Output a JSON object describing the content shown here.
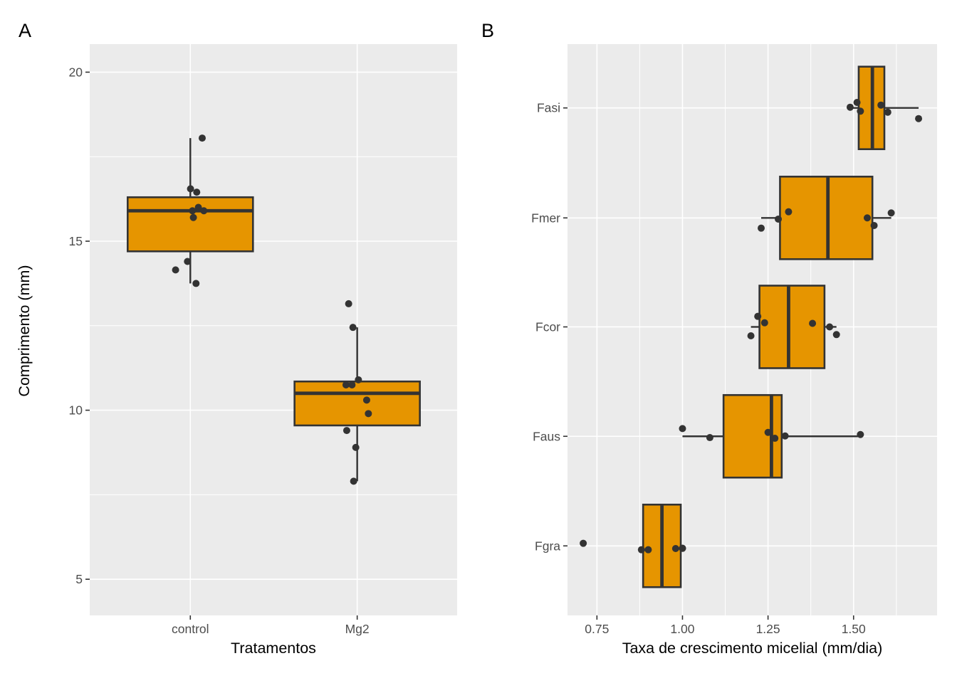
{
  "colors": {
    "box_fill": "#E69500",
    "box_stroke": "#333333",
    "point": "#333333",
    "panel_bg": "#EBEBEB",
    "grid": "#FFFFFF",
    "tick_text": "#4D4D4D",
    "axis_title": "#000000"
  },
  "chart_data": [
    {
      "type": "boxplot",
      "tag": "A",
      "orientation": "vertical",
      "xlabel": "Tratamentos",
      "ylabel": "Comprimento (mm)",
      "ylim": [
        3.93,
        20.83
      ],
      "yticks": {
        "values": [
          5,
          10,
          15,
          20
        ],
        "labels": [
          "5",
          "10",
          "15",
          "20"
        ]
      },
      "yticks_minor": [
        7.5,
        12.5,
        17.5
      ],
      "categories": [
        "control",
        "Mg2"
      ],
      "grid": true,
      "legend": false,
      "boxes": [
        {
          "category": "control",
          "q1": 14.7,
          "median": 15.9,
          "q3": 16.3,
          "whisker_low": 13.75,
          "whisker_high": 18.05,
          "points": [
            [
              18.05,
              16.7
            ],
            [
              16.55,
              0.3
            ],
            [
              16.45,
              9
            ],
            [
              16.0,
              11.3
            ],
            [
              15.9,
              3
            ],
            [
              15.9,
              19
            ],
            [
              15.7,
              4.3
            ],
            [
              14.4,
              -4
            ],
            [
              14.15,
              -20.7
            ],
            [
              13.75,
              8
            ]
          ]
        },
        {
          "category": "Mg2",
          "q1": 9.55,
          "median": 10.5,
          "q3": 10.85,
          "whisker_low": 7.9,
          "whisker_high": 12.45,
          "points": [
            [
              13.15,
              -12
            ],
            [
              12.45,
              -6
            ],
            [
              10.9,
              1.7
            ],
            [
              10.75,
              -15.7
            ],
            [
              10.75,
              -7.3
            ],
            [
              10.3,
              13.3
            ],
            [
              9.9,
              15.7
            ],
            [
              9.4,
              -14.7
            ],
            [
              8.9,
              -2
            ],
            [
              7.9,
              -5
            ]
          ]
        }
      ]
    },
    {
      "type": "boxplot",
      "tag": "B",
      "orientation": "horizontal",
      "xlabel": "Taxa de crescimento micelial (mm/dia)",
      "ylabel": "",
      "xlim": [
        0.664,
        1.744
      ],
      "xticks": {
        "values": [
          0.75,
          1.0,
          1.25,
          1.5
        ],
        "labels": [
          "0.75",
          "1.00",
          "1.25",
          "1.50"
        ]
      },
      "xticks_minor": [
        0.875,
        1.125,
        1.375,
        1.625
      ],
      "categories": [
        "Fasi",
        "Fmer",
        "Fcor",
        "Faus",
        "Fgra"
      ],
      "grid": true,
      "legend": false,
      "boxes": [
        {
          "category": "Fasi",
          "q1": 1.515,
          "median": 1.555,
          "q3": 1.59,
          "whisker_low": 1.49,
          "whisker_high": 1.69,
          "points": [
            [
              1.49,
              -1
            ],
            [
              1.51,
              -7.7
            ],
            [
              1.52,
              4.6
            ],
            [
              1.58,
              -4
            ],
            [
              1.6,
              6
            ],
            [
              1.69,
              15
            ]
          ]
        },
        {
          "category": "Fmer",
          "q1": 1.285,
          "median": 1.425,
          "q3": 1.555,
          "whisker_low": 1.23,
          "whisker_high": 1.61,
          "points": [
            [
              1.23,
              14.4
            ],
            [
              1.28,
              1.7
            ],
            [
              1.31,
              -8.6
            ],
            [
              1.54,
              0
            ],
            [
              1.56,
              10.7
            ],
            [
              1.61,
              -7
            ]
          ]
        },
        {
          "category": "Fcor",
          "q1": 1.225,
          "median": 1.31,
          "q3": 1.415,
          "whisker_low": 1.2,
          "whisker_high": 1.45,
          "points": [
            [
              1.2,
              12.5
            ],
            [
              1.22,
              -14.8
            ],
            [
              1.24,
              -5.8
            ],
            [
              1.38,
              -5
            ],
            [
              1.43,
              0
            ],
            [
              1.45,
              10.8
            ]
          ]
        },
        {
          "category": "Faus",
          "q1": 1.12,
          "median": 1.26,
          "q3": 1.29,
          "whisker_low": 1.0,
          "whisker_high": 1.52,
          "points": [
            [
              1.0,
              -10.9
            ],
            [
              1.08,
              1.8
            ],
            [
              1.25,
              -5.5
            ],
            [
              1.27,
              2.8
            ],
            [
              1.3,
              -0.5
            ],
            [
              1.52,
              -2.5
            ]
          ]
        },
        {
          "category": "Fgra",
          "q1": 0.885,
          "median": 0.94,
          "q3": 0.995,
          "whisker_low": 0.885,
          "whisker_high": 0.995,
          "points": [
            [
              0.71,
              -3.6
            ],
            [
              0.88,
              5.4
            ],
            [
              0.9,
              5.4
            ],
            [
              0.98,
              3.7
            ],
            [
              1.0,
              3.4
            ],
            [
              1.0,
              3.4
            ]
          ]
        }
      ]
    }
  ]
}
